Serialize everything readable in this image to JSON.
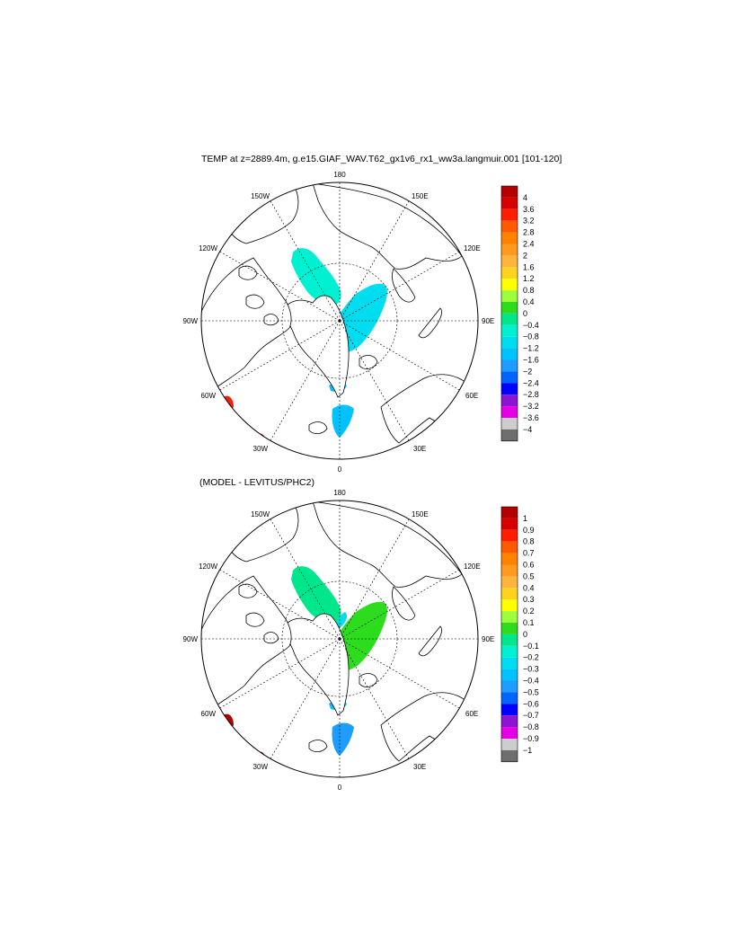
{
  "palette": [
    "#b50000",
    "#d70000",
    "#ff1e00",
    "#ff5a00",
    "#ff8200",
    "#ff9a1e",
    "#ffb43c",
    "#ffd21e",
    "#ffff00",
    "#9cff3c",
    "#2edc1e",
    "#00e68c",
    "#00f0d2",
    "#00dcf0",
    "#00c2ff",
    "#1e9cff",
    "#0064ff",
    "#0000ff",
    "#8c14d2",
    "#e600e6",
    "#cdcdcd",
    "#6e6e6e"
  ],
  "land_color": "#ffffff",
  "coast_color": "#000000",
  "panels": {
    "top": {
      "title": "TEMP at z=2889.4m, g.e15.GIAF_WAV.T62_gx1v6_rx1_ww3a.langmuir.001 [101-120]",
      "lon_labels": {
        "top": "180",
        "bottom": "0",
        "left": "90W",
        "right": "90E",
        "upper_left_1": "150W",
        "upper_left_2": "120W",
        "upper_right_1": "150E",
        "upper_right_2": "120E",
        "lower_left_1": "60W",
        "lower_left_2": "30W",
        "lower_right_1": "60E",
        "lower_right_2": "30E"
      },
      "colorbar_labels": [
        "4",
        "3.6",
        "3.2",
        "2.8",
        "2.4",
        "2",
        "1.6",
        "1.2",
        "0.8",
        "0.4",
        "0",
        "−0.4",
        "−0.8",
        "−1.2",
        "−1.6",
        "−2",
        "−2.4",
        "−2.8",
        "−3.2",
        "−3.6",
        "−4"
      ],
      "patches": [
        {
          "region": "canada-basin",
          "color": "#00f0d2"
        },
        {
          "region": "eurasian-basin",
          "color": "#00dcf0"
        },
        {
          "region": "fram-strait",
          "color": "#00c2ff"
        },
        {
          "region": "nordic-seas",
          "color": "#00c2ff"
        },
        {
          "region": "labrador-sea",
          "color": "#ff1e00"
        },
        {
          "region": "north-atlantic",
          "color": "#ff1e00"
        }
      ]
    },
    "bottom": {
      "title": "(MODEL - LEVITUS/PHC2)",
      "lon_labels": {
        "top": "180",
        "bottom": "0",
        "left": "90W",
        "right": "90E",
        "upper_left_1": "150W",
        "upper_left_2": "120W",
        "upper_right_1": "150E",
        "upper_right_2": "120E",
        "lower_left_1": "60W",
        "lower_left_2": "30W",
        "lower_right_1": "60E",
        "lower_right_2": "30E"
      },
      "colorbar_labels": [
        "1",
        "0.9",
        "0.8",
        "0.7",
        "0.6",
        "0.5",
        "0.4",
        "0.3",
        "0.2",
        "0.1",
        "0",
        "−0.1",
        "−0.2",
        "−0.3",
        "−0.4",
        "−0.5",
        "−0.6",
        "−0.7",
        "−0.8",
        "−0.9",
        "−1"
      ],
      "patches": [
        {
          "region": "canada-basin",
          "color": "#00e68c"
        },
        {
          "region": "eurasian-basin",
          "color": "#2edc1e"
        },
        {
          "region": "lomonosov",
          "color": "#00dcf0"
        },
        {
          "region": "fram-strait",
          "color": "#00c2ff"
        },
        {
          "region": "nordic-seas",
          "color": "#1e9cff"
        },
        {
          "region": "labrador-sea",
          "color": "#b50000"
        },
        {
          "region": "north-atlantic",
          "color": "#b50000"
        }
      ]
    }
  },
  "chart_data": [
    {
      "type": "heatmap",
      "projection": "north-polar-stereographic",
      "title": "TEMP at z=2889.4m, g.e15.GIAF_WAV.T62_gx1v6_rx1_ww3a.langmuir.001 [101-120]",
      "variable": "TEMP",
      "depth_m": 2889.4,
      "years": "101-120",
      "colorbar": {
        "min": -4,
        "max": 4,
        "step": 0.4
      },
      "regions": [
        {
          "name": "Canada Basin",
          "value": -0.6
        },
        {
          "name": "Eurasian Basin",
          "value": -1.0
        },
        {
          "name": "Fram Strait",
          "value": -1.4
        },
        {
          "name": "Nordic Seas",
          "value": -1.4
        },
        {
          "name": "Labrador Sea edge",
          "value": 3.0
        },
        {
          "name": "North Atlantic edge",
          "value": 3.0
        }
      ]
    },
    {
      "type": "heatmap",
      "projection": "north-polar-stereographic",
      "title": "(MODEL - LEVITUS/PHC2)",
      "colorbar": {
        "min": -1,
        "max": 1,
        "step": 0.1
      },
      "regions": [
        {
          "name": "Canada Basin",
          "value": -0.05
        },
        {
          "name": "Eurasian Basin",
          "value": 0.05
        },
        {
          "name": "Lomonosov Ridge",
          "value": -0.25
        },
        {
          "name": "Fram Strait",
          "value": -0.35
        },
        {
          "name": "Nordic Seas",
          "value": -0.35
        },
        {
          "name": "Labrador Sea edge",
          "value": 0.95
        },
        {
          "name": "North Atlantic edge",
          "value": 0.95
        }
      ]
    }
  ]
}
